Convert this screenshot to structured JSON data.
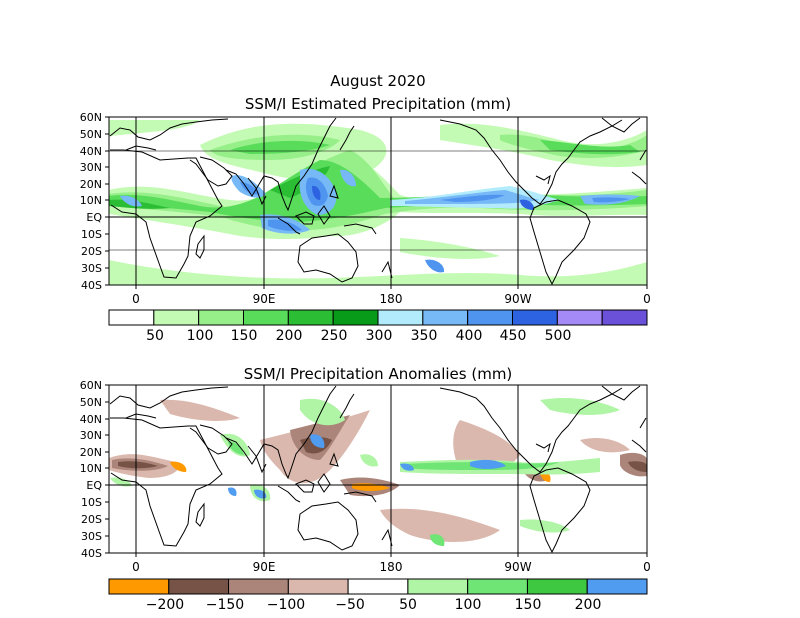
{
  "figure": {
    "month_title": "August 2020",
    "panels": [
      {
        "title": "SSM/I Estimated Precipitation (mm)",
        "lat_labels": [
          "60N",
          "50N",
          "40N",
          "30N",
          "20N",
          "10N",
          "EQ",
          "10S",
          "20S",
          "30S",
          "40S"
        ],
        "lon_labels": [
          "0",
          "90E",
          "180",
          "90W",
          "0"
        ],
        "legend": {
          "colors": [
            "#ffffff",
            "#c4fbb4",
            "#96ef88",
            "#58dc5a",
            "#2bbd34",
            "#089b1a",
            "#b2ecfc",
            "#77b9f7",
            "#4f94ef",
            "#2d63e0",
            "#a48af6",
            "#6b51d9"
          ],
          "labels": [
            "50",
            "100",
            "150",
            "200",
            "250",
            "300",
            "350",
            "400",
            "450",
            "500"
          ]
        }
      },
      {
        "title": "SSM/I Precipitation Anomalies (mm)",
        "lat_labels": [
          "60N",
          "50N",
          "40N",
          "30N",
          "20N",
          "10N",
          "EQ",
          "10S",
          "20S",
          "30S",
          "40S"
        ],
        "lon_labels": [
          "0",
          "90E",
          "180",
          "90W",
          "0"
        ],
        "legend": {
          "colors": [
            "#ff9900",
            "#765346",
            "#ab857a",
            "#dbb8ad",
            "#ffffff",
            "#b0f5a5",
            "#6ee575",
            "#3ec740",
            "#4f9cf0"
          ],
          "labels": [
            "−200",
            "−150",
            "−100",
            "−50",
            "50",
            "100",
            "150",
            "200"
          ]
        }
      }
    ]
  }
}
